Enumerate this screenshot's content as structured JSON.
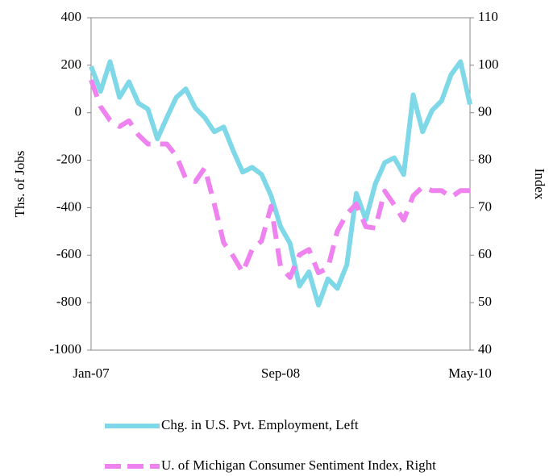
{
  "chart_data": {
    "type": "line",
    "categories": [
      "Jan-07",
      null,
      null,
      null,
      null,
      null,
      null,
      null,
      null,
      null,
      null,
      null,
      null,
      null,
      null,
      null,
      null,
      null,
      null,
      null,
      "Sep-08",
      null,
      null,
      null,
      null,
      null,
      null,
      null,
      null,
      null,
      null,
      null,
      null,
      null,
      null,
      null,
      null,
      null,
      null,
      null,
      "May-10"
    ],
    "ylabel": "Ths. of Jobs",
    "y2label": "Index",
    "ylim": [
      -1000,
      400
    ],
    "yticks": [
      -1000,
      -800,
      -600,
      -400,
      -200,
      0,
      200,
      400
    ],
    "y2lim": [
      40,
      110
    ],
    "y2ticks": [
      40,
      50,
      60,
      70,
      80,
      90,
      100,
      110
    ],
    "series": [
      {
        "name": "Chg. in U.S. Pvt. Employment,  Left",
        "color": "#7fd8e8",
        "dash": false,
        "values": [
          195,
          90,
          215,
          65,
          130,
          40,
          15,
          -110,
          -20,
          65,
          100,
          20,
          -20,
          -80,
          -60,
          -160,
          -250,
          -230,
          -260,
          -350,
          -480,
          -550,
          -730,
          -670,
          -810,
          -700,
          -740,
          -640,
          -340,
          -450,
          -300,
          -210,
          -190,
          -260,
          75,
          -80,
          10,
          50,
          160,
          215,
          35
        ]
      },
      {
        "name": "U. of Michigan Consumer Sentiment Index, Right",
        "color": "#ee82ee",
        "dash": true,
        "axis": "y2",
        "values": [
          96.9,
          91.3,
          88.4,
          87.1,
          88.3,
          85.3,
          83.4,
          83.4,
          83.4,
          80.9,
          76.1,
          75.5,
          78.4,
          70.8,
          62.6,
          59.8,
          56.4,
          61.2,
          63.0,
          70.3,
          57.6,
          55.3,
          60.1,
          61.2,
          56.3,
          57.3,
          65.1,
          68.7,
          70.8,
          66.0,
          65.7,
          73.5,
          70.6,
          67.4,
          72.5,
          74.4,
          73.6,
          73.6,
          72.2,
          73.6,
          73.6
        ]
      }
    ]
  }
}
